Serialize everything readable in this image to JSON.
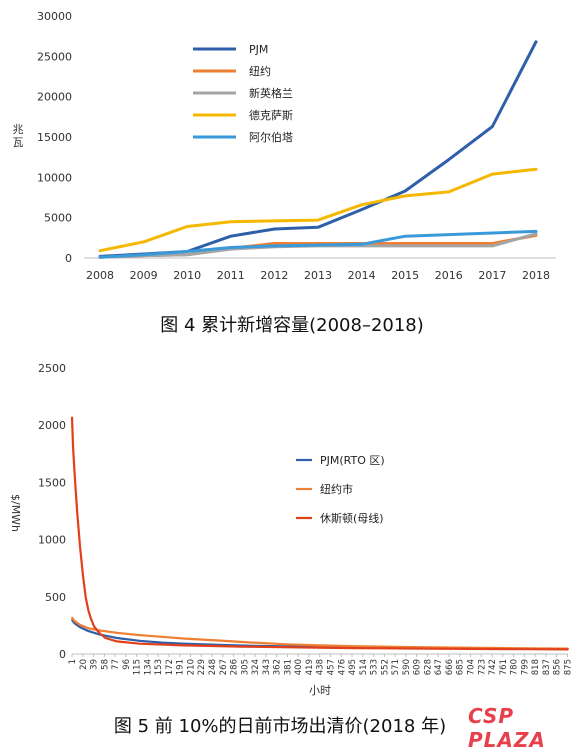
{
  "chart_data": [
    {
      "type": "line",
      "title": "",
      "xlabel": "",
      "ylabel": "兆瓦",
      "x": [
        "2008",
        "2009",
        "2010",
        "2011",
        "2012",
        "2013",
        "2014",
        "2015",
        "2016",
        "2017",
        "2018"
      ],
      "ylim": [
        0,
        30000
      ],
      "yticks": [
        "0",
        "5000",
        "10000",
        "15000",
        "20000",
        "25000",
        "30000"
      ],
      "grid": false,
      "legend_position": "top-center",
      "series": [
        {
          "name": "PJM",
          "color": "#2e5fa8",
          "values": [
            200,
            500,
            800,
            2700,
            3600,
            3800,
            6000,
            8300,
            12200,
            16300,
            26800
          ]
        },
        {
          "name": "纽约",
          "color": "#ef7f32",
          "values": [
            100,
            300,
            400,
            1200,
            1800,
            1800,
            1800,
            1800,
            1800,
            1800,
            2800
          ]
        },
        {
          "name": "新英格兰",
          "color": "#a5a5a5",
          "values": [
            100,
            300,
            400,
            1100,
            1400,
            1500,
            1500,
            1500,
            1500,
            1500,
            3000
          ]
        },
        {
          "name": "德克萨斯",
          "color": "#f5b800",
          "values": [
            900,
            2000,
            3900,
            4500,
            4600,
            4700,
            6600,
            7700,
            8200,
            10400,
            11000
          ]
        },
        {
          "name": "阿尔伯塔",
          "color": "#3a9ad9",
          "values": [
            100,
            400,
            800,
            1300,
            1500,
            1600,
            1700,
            2700,
            2900,
            3100,
            3300
          ]
        }
      ],
      "caption": "图 4    累计新增容量(2008–2018)"
    },
    {
      "type": "line",
      "title": "",
      "xlabel": "小时",
      "ylabel": "$/MWh",
      "ylim": [
        0,
        2500
      ],
      "yticks": [
        "0",
        "500",
        "1000",
        "1500",
        "2000",
        "2500"
      ],
      "x_ticks": [
        "1",
        "20",
        "39",
        "58",
        "77",
        "96",
        "115",
        "134",
        "153",
        "172",
        "191",
        "210",
        "229",
        "248",
        "267",
        "286",
        "305",
        "324",
        "343",
        "362",
        "381",
        "400",
        "419",
        "438",
        "457",
        "476",
        "495",
        "514",
        "533",
        "552",
        "571",
        "590",
        "609",
        "628",
        "647",
        "666",
        "685",
        "704",
        "723",
        "742",
        "761",
        "780",
        "799",
        "818",
        "837",
        "856",
        "875"
      ],
      "xlim": [
        1,
        876
      ],
      "grid": false,
      "legend_position": "right",
      "series": [
        {
          "name": "PJM(RTO 区)",
          "color": "#2e5fa8",
          "x": [
            1,
            5,
            15,
            30,
            50,
            80,
            120,
            160,
            200,
            260,
            320,
            380,
            440,
            500,
            600,
            700,
            800,
            876
          ],
          "y": [
            300,
            270,
            235,
            200,
            170,
            140,
            115,
            100,
            90,
            80,
            72,
            66,
            62,
            58,
            54,
            50,
            48,
            45
          ]
        },
        {
          "name": "纽约市",
          "color": "#ef7f32",
          "x": [
            1,
            5,
            15,
            30,
            50,
            80,
            120,
            160,
            200,
            260,
            320,
            380,
            440,
            500,
            600,
            700,
            800,
            876
          ],
          "y": [
            320,
            290,
            255,
            225,
            205,
            185,
            165,
            150,
            135,
            118,
            100,
            85,
            75,
            68,
            60,
            55,
            50,
            47
          ]
        },
        {
          "name": "休斯顿(母线)",
          "color": "#e0401a",
          "x": [
            1,
            3,
            6,
            10,
            15,
            20,
            25,
            30,
            35,
            40,
            50,
            60,
            80,
            120,
            200,
            300,
            400,
            500,
            600,
            700,
            800,
            876
          ],
          "y": [
            2070,
            1800,
            1550,
            1250,
            950,
            700,
            500,
            380,
            300,
            240,
            180,
            140,
            110,
            90,
            75,
            65,
            58,
            52,
            48,
            45,
            42,
            40
          ]
        }
      ],
      "caption": "图 5    前 10%的日前市场出清价(2018 年)"
    }
  ],
  "watermark": {
    "a": "CSP",
    "b": "PLAZA"
  }
}
